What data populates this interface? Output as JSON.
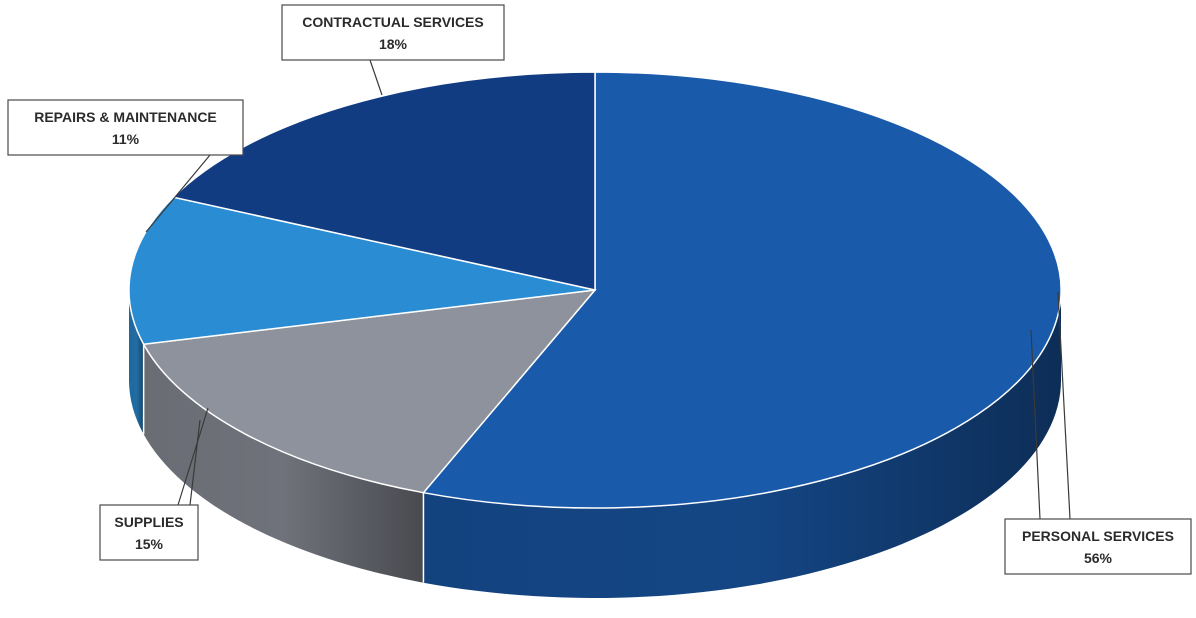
{
  "chart_data": {
    "type": "pie",
    "style": "3d",
    "title": "",
    "slices": [
      {
        "label": "PERSONAL SERVICES",
        "value": 56,
        "value_label": "56%",
        "color": "#1a5aab"
      },
      {
        "label": "SUPPLIES",
        "value": 15,
        "value_label": "15%",
        "color": "#8e929c"
      },
      {
        "label": "REPAIRS & MAINTENANCE",
        "value": 11,
        "value_label": "11%",
        "color": "#2a8cd2"
      },
      {
        "label": "CONTRACTUAL SERVICES",
        "value": 18,
        "value_label": "18%",
        "color": "#123c82"
      }
    ],
    "legend": "none",
    "data_labels": "callouts"
  }
}
